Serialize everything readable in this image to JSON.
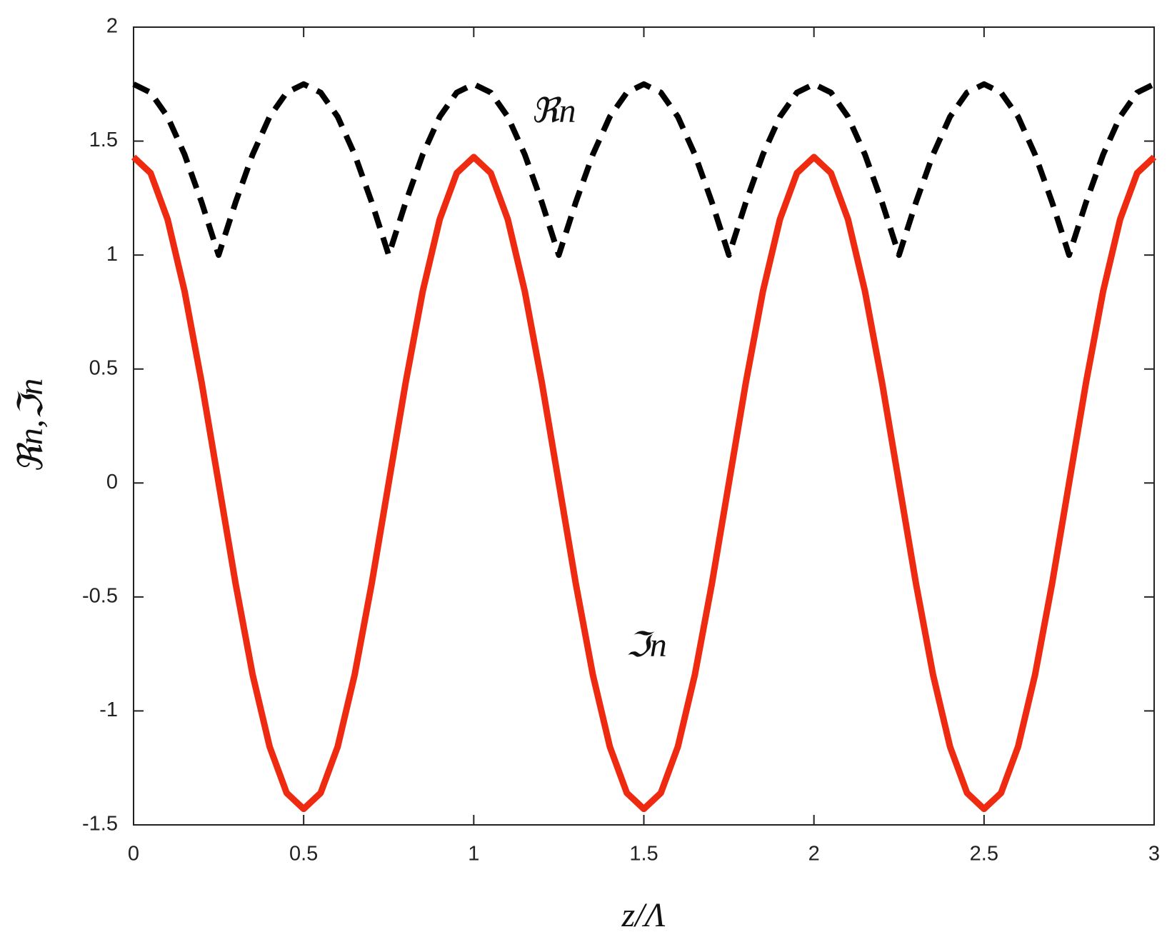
{
  "chart_data": {
    "type": "line",
    "xlabel": "z/Λ",
    "ylabel": "ℜn,ℑn",
    "x": [
      0,
      0.05,
      0.1,
      0.15,
      0.2,
      0.25,
      0.3,
      0.35,
      0.4,
      0.45,
      0.5,
      0.55,
      0.6,
      0.65,
      0.7,
      0.75,
      0.8,
      0.85,
      0.9,
      0.95,
      1,
      1.05,
      1.1,
      1.15,
      1.2,
      1.25,
      1.3,
      1.35,
      1.4,
      1.45,
      1.5,
      1.55,
      1.6,
      1.65,
      1.7,
      1.75,
      1.8,
      1.85,
      1.9,
      1.95,
      2,
      2.05,
      2.1,
      2.15,
      2.2,
      2.25,
      2.3,
      2.35,
      2.4,
      2.45,
      2.5,
      2.55,
      2.6,
      2.65,
      2.7,
      2.75,
      2.8,
      2.85,
      2.9,
      2.95,
      3
    ],
    "series": [
      {
        "name": "ℜn",
        "color": "#000000",
        "linestyle": "dashed",
        "values": [
          1.75,
          1.713,
          1.607,
          1.441,
          1.232,
          1,
          1.232,
          1.441,
          1.607,
          1.713,
          1.75,
          1.713,
          1.607,
          1.441,
          1.232,
          1,
          1.232,
          1.441,
          1.607,
          1.713,
          1.75,
          1.713,
          1.607,
          1.441,
          1.232,
          1,
          1.232,
          1.441,
          1.607,
          1.713,
          1.75,
          1.713,
          1.607,
          1.441,
          1.232,
          1,
          1.232,
          1.441,
          1.607,
          1.713,
          1.75,
          1.713,
          1.607,
          1.441,
          1.232,
          1,
          1.232,
          1.441,
          1.607,
          1.713,
          1.75,
          1.713,
          1.607,
          1.441,
          1.232,
          1,
          1.232,
          1.441,
          1.607,
          1.713,
          1.75
        ]
      },
      {
        "name": "ℑn",
        "color": "#ee2a10",
        "linestyle": "solid",
        "values": [
          1.43,
          1.36,
          1.157,
          0.841,
          0.442,
          0,
          -0.442,
          -0.841,
          -1.157,
          -1.36,
          -1.43,
          -1.36,
          -1.157,
          -0.841,
          -0.442,
          0,
          0.442,
          0.841,
          1.157,
          1.36,
          1.43,
          1.36,
          1.157,
          0.841,
          0.442,
          0,
          -0.442,
          -0.841,
          -1.157,
          -1.36,
          -1.43,
          -1.36,
          -1.157,
          -0.841,
          -0.442,
          0,
          0.442,
          0.841,
          1.157,
          1.36,
          1.43,
          1.36,
          1.157,
          0.841,
          0.442,
          0,
          -0.442,
          -0.841,
          -1.157,
          -1.36,
          -1.43,
          -1.36,
          -1.157,
          -0.841,
          -0.442,
          0,
          0.442,
          0.841,
          1.157,
          1.36,
          1.43
        ]
      }
    ],
    "xlim": [
      0,
      3
    ],
    "xticks": [
      0,
      0.5,
      1,
      1.5,
      2,
      2.5,
      3
    ],
    "ylim": [
      -1.5,
      2
    ],
    "yticks": [
      -1.5,
      -1,
      -0.5,
      0,
      0.5,
      1,
      1.5,
      2
    ],
    "grid": false
  }
}
